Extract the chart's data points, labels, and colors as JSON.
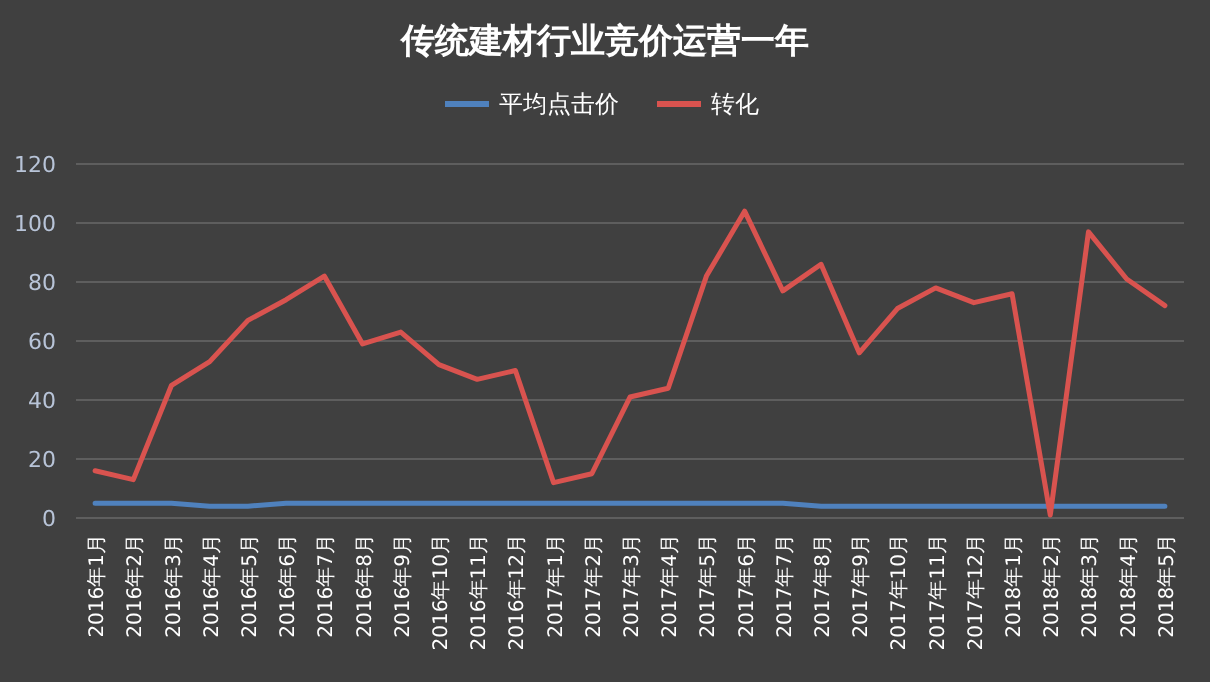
{
  "chart_data": {
    "type": "line",
    "title": "传统建材行业竞价运营一年",
    "categories": [
      "2016年1月",
      "2016年2月",
      "2016年3月",
      "2016年4月",
      "2016年5月",
      "2016年6月",
      "2016年7月",
      "2016年8月",
      "2016年9月",
      "2016年10月",
      "2016年11月",
      "2016年12月",
      "2017年1月",
      "2017年2月",
      "2017年3月",
      "2017年4月",
      "2017年5月",
      "2017年6月",
      "2017年7月",
      "2017年8月",
      "2017年9月",
      "2017年10月",
      "2017年11月",
      "2017年12月",
      "2018年1月",
      "2018年2月",
      "2018年3月",
      "2018年4月",
      "2018年5月"
    ],
    "series": [
      {
        "name": "平均点击价",
        "color": "#4f81bd",
        "values": [
          5,
          5,
          5,
          4,
          4,
          5,
          5,
          5,
          5,
          5,
          5,
          5,
          5,
          5,
          5,
          5,
          5,
          5,
          5,
          4,
          4,
          4,
          4,
          4,
          4,
          4,
          4,
          4,
          4
        ]
      },
      {
        "name": "转化",
        "color": "#d9534f",
        "values": [
          16,
          13,
          45,
          53,
          67,
          74,
          82,
          59,
          63,
          52,
          47,
          50,
          12,
          15,
          41,
          44,
          82,
          104,
          77,
          86,
          56,
          71,
          78,
          73,
          76,
          1,
          97,
          81,
          72
        ]
      }
    ],
    "ylim": [
      0,
      120
    ],
    "yticks": [
      0,
      20,
      40,
      60,
      80,
      100,
      120
    ],
    "grid": "y",
    "legend": "top",
    "marker": "none",
    "line_style": "solid"
  }
}
